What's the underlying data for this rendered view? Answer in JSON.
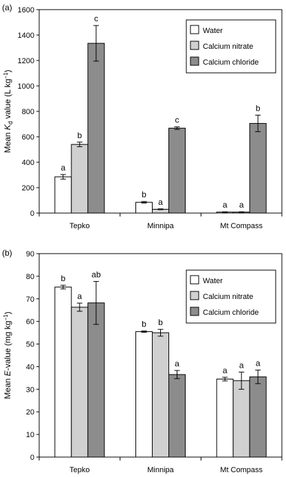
{
  "chart_data": [
    {
      "panel_label": "(a)",
      "type": "bar",
      "categories": [
        "Tepko",
        "Minnipa",
        "Mt Compass"
      ],
      "ylabel_parts": {
        "pre": "Mean ",
        "italic": "K",
        "sub": "d",
        "post": " value (L kg",
        "sup": "−1",
        "end": ")"
      },
      "ylim": [
        0,
        1600
      ],
      "yticks": [
        0,
        200,
        400,
        600,
        800,
        1000,
        1200,
        1400,
        1600
      ],
      "legend_position": "top-right",
      "series": [
        {
          "name": "Water",
          "color": "#ffffff",
          "values": [
            285,
            85,
            8
          ],
          "errors": [
            18,
            6,
            2
          ],
          "letters": [
            "a",
            "b",
            "a"
          ]
        },
        {
          "name": "Calcium nitrate",
          "color": "#d0d0d0",
          "values": [
            540,
            30,
            8
          ],
          "errors": [
            18,
            3,
            2
          ],
          "letters": [
            "b",
            "a",
            "a"
          ]
        },
        {
          "name": "Calcium chloride",
          "color": "#8c8c8c",
          "values": [
            1335,
            668,
            705
          ],
          "errors": [
            140,
            10,
            65
          ],
          "letters": [
            "c",
            "c",
            "b"
          ]
        }
      ]
    },
    {
      "panel_label": "(b)",
      "type": "bar",
      "categories": [
        "Tepko",
        "Minnipa",
        "Mt Compass"
      ],
      "ylabel_parts": {
        "pre": "Mean ",
        "italic": "E",
        "sub": "",
        "post": "-value (mg kg",
        "sup": "−1",
        "end": ")"
      },
      "ylim": [
        0,
        90
      ],
      "yticks": [
        0,
        10,
        20,
        30,
        40,
        50,
        60,
        70,
        80,
        90
      ],
      "legend_position": "top-right",
      "series": [
        {
          "name": "Water",
          "color": "#ffffff",
          "values": [
            75.2,
            55.5,
            34.5
          ],
          "errors": [
            0.8,
            0.3,
            0.8
          ],
          "letters": [
            "b",
            "b",
            "a"
          ]
        },
        {
          "name": "Calcium nitrate",
          "color": "#d0d0d0",
          "values": [
            66.3,
            55.0,
            33.8
          ],
          "errors": [
            1.8,
            1.5,
            3.8
          ],
          "letters": [
            "a",
            "b",
            "a"
          ]
        },
        {
          "name": "Calcium chloride",
          "color": "#8c8c8c",
          "values": [
            68.2,
            36.5,
            35.5
          ],
          "errors": [
            9.5,
            1.8,
            3.0
          ],
          "letters": [
            "ab",
            "a",
            "a"
          ]
        }
      ]
    }
  ]
}
